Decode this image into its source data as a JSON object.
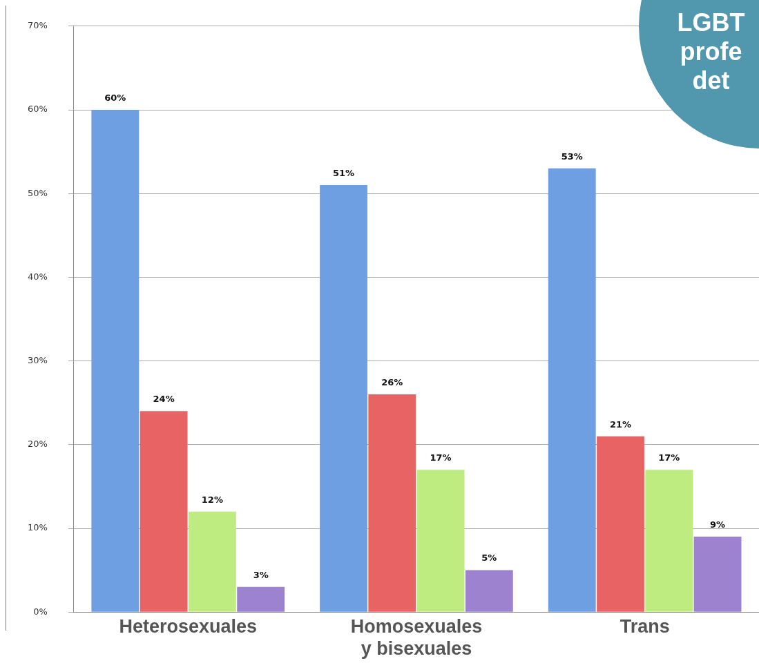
{
  "chart_data": {
    "type": "bar",
    "categories": [
      "Heterosexuales",
      "Homosexuales\ny bisexuales",
      "Trans"
    ],
    "series": [
      {
        "color": "#6f9fe3",
        "values": [
          60,
          51,
          53
        ],
        "value_labels": [
          "60%",
          "51%",
          "53%"
        ]
      },
      {
        "color": "#e86464",
        "values": [
          24,
          26,
          21
        ],
        "value_labels": [
          "24%",
          "26%",
          "21%"
        ]
      },
      {
        "color": "#bfec80",
        "values": [
          12,
          17,
          17
        ],
        "value_labels": [
          "12%",
          "17%",
          "17%"
        ]
      },
      {
        "color": "#9c82cf",
        "values": [
          3,
          5,
          9
        ],
        "value_labels": [
          "3%",
          "5%",
          "9%"
        ]
      }
    ],
    "ylim": [
      0,
      70
    ],
    "yticks": [
      {
        "value": 0,
        "label": "0%"
      },
      {
        "value": 10,
        "label": "10%"
      },
      {
        "value": 20,
        "label": "20%"
      },
      {
        "value": 30,
        "label": "30%"
      },
      {
        "value": 40,
        "label": "40%"
      },
      {
        "value": 50,
        "label": "50%"
      },
      {
        "value": 60,
        "label": "60%"
      },
      {
        "value": 70,
        "label": "70%"
      }
    ],
    "grid": "y",
    "legend": false,
    "annotations": [
      "LGBT",
      "profe",
      "det"
    ]
  }
}
